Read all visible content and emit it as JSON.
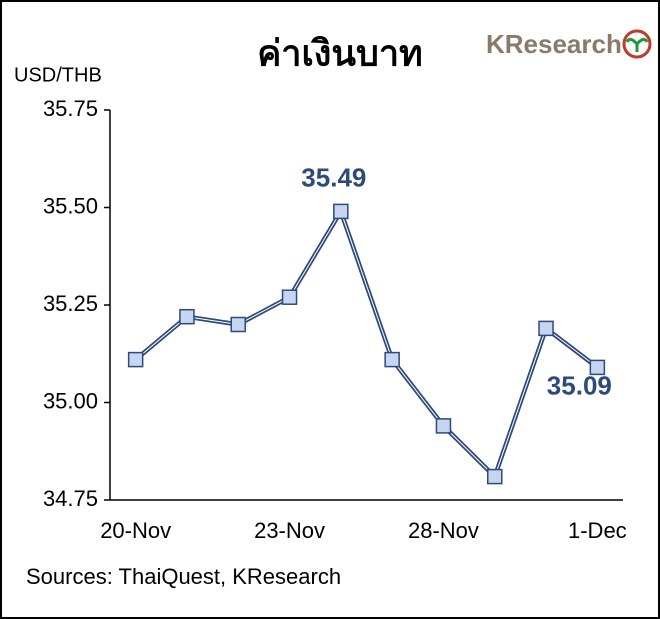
{
  "chart_data": {
    "type": "line",
    "title": "ค่าเงินบาท",
    "logo": "KResearch",
    "y_label": "USD/THB",
    "source": "Sources: ThaiQuest, KResearch",
    "categories": [
      "20-Nov",
      null,
      null,
      "23-Nov",
      null,
      null,
      "28-Nov",
      null,
      null,
      "1-Dec"
    ],
    "series": [
      {
        "name": "USD/THB",
        "color": "#2e4a7a",
        "values": [
          35.11,
          35.22,
          35.2,
          35.27,
          35.49,
          35.11,
          34.94,
          34.81,
          35.19,
          35.09
        ],
        "value_labels": [
          null,
          null,
          null,
          null,
          "35.49",
          null,
          null,
          null,
          null,
          "35.09"
        ]
      }
    ],
    "ylim": [
      34.75,
      35.75
    ],
    "yticks": [
      34.75,
      {
        "value": 35,
        "label": "35.00"
      },
      35.25,
      {
        "value": 35.5,
        "label": "35.50"
      },
      35.75
    ],
    "marker_fill": "#c6d6f0"
  }
}
